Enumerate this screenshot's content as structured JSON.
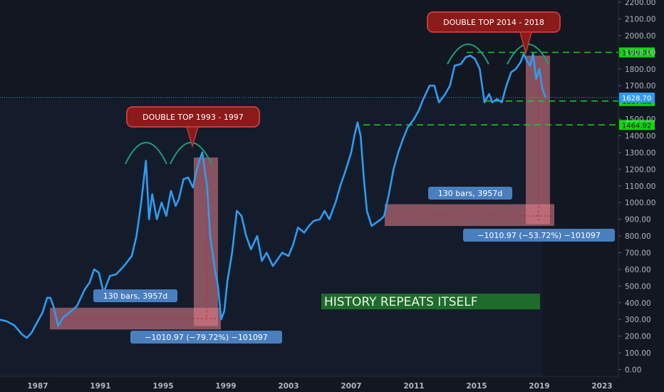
{
  "chart_data": {
    "type": "line",
    "series": [
      {
        "color": "#2f9cf1",
        "x": [
          1984.0,
          1984.5,
          1985.0,
          1985.5,
          1986.0,
          1986.3,
          1986.6,
          1987.0,
          1987.3,
          1987.6,
          1987.8,
          1988.0,
          1988.3,
          1988.6,
          1989.0,
          1989.5,
          1990.0,
          1990.3,
          1990.6,
          1990.9,
          1991.2,
          1991.6,
          1992.0,
          1992.5,
          1993.0,
          1993.3,
          1993.6,
          1993.9,
          1994.1,
          1994.3,
          1994.6,
          1994.9,
          1995.2,
          1995.5,
          1995.8,
          1996.0,
          1996.3,
          1996.6,
          1996.9,
          1997.1,
          1997.3,
          1997.5,
          1997.8,
          1998.0,
          1998.3,
          1998.5,
          1998.7,
          1998.9,
          1999.1,
          1999.4,
          1999.7,
          2000.0,
          2000.3,
          2000.6,
          2001.0,
          2001.3,
          2001.6,
          2002.0,
          2002.3,
          2002.6,
          2003.0,
          2003.3,
          2003.6,
          2004.0,
          2004.3,
          2004.6,
          2005.0,
          2005.3,
          2005.6,
          2006.0,
          2006.3,
          2006.6,
          2007.0,
          2007.2,
          2007.4,
          2007.6,
          2007.8,
          2008.0,
          2008.3,
          2008.6,
          2008.9,
          2009.1,
          2009.4,
          2009.7,
          2010.0,
          2010.3,
          2010.6,
          2011.0,
          2011.3,
          2011.6,
          2012.0,
          2012.3,
          2012.6,
          2013.0,
          2013.3,
          2013.6,
          2014.0,
          2014.3,
          2014.6,
          2014.9,
          2015.2,
          2015.5,
          2015.8,
          2016.0,
          2016.3,
          2016.6,
          2016.9,
          2017.2,
          2017.5,
          2017.8,
          2018.0,
          2018.2,
          2018.4,
          2018.6,
          2018.8,
          2019.0,
          2019.2,
          2019.4
        ],
        "y": [
          305,
          300,
          290,
          265,
          210,
          190,
          220,
          290,
          340,
          430,
          430,
          380,
          260,
          310,
          340,
          380,
          480,
          520,
          600,
          580,
          460,
          560,
          570,
          620,
          680,
          800,
          1000,
          1250,
          900,
          1050,
          900,
          1000,
          920,
          1070,
          980,
          1020,
          1140,
          1150,
          1090,
          1180,
          1250,
          1300,
          1100,
          800,
          600,
          500,
          300,
          350,
          530,
          700,
          950,
          920,
          800,
          720,
          800,
          650,
          700,
          620,
          660,
          700,
          680,
          750,
          850,
          820,
          860,
          890,
          900,
          950,
          900,
          1000,
          1100,
          1180,
          1300,
          1400,
          1480,
          1400,
          1150,
          950,
          860,
          880,
          900,
          920,
          1050,
          1200,
          1300,
          1380,
          1450,
          1500,
          1550,
          1620,
          1700,
          1700,
          1600,
          1650,
          1700,
          1820,
          1830,
          1870,
          1880,
          1860,
          1800,
          1600,
          1650,
          1600,
          1620,
          1600,
          1700,
          1780,
          1800,
          1840,
          1890,
          1850,
          1820,
          1890,
          1740,
          1800,
          1680,
          1628
        ]
      }
    ],
    "ylim": [
      -40,
      2220
    ],
    "xlim": [
      1984,
      2025
    ],
    "y_ticks": [
      "0.00",
      "100.00",
      "200.00",
      "300.00",
      "400.00",
      "500.00",
      "600.00",
      "700.00",
      "800.00",
      "900.00",
      "1000.00",
      "1100.00",
      "1200.00",
      "1300.00",
      "1400.00",
      "1500.00",
      "1700.00",
      "1800.00",
      "1900.00",
      "2000.00",
      "2100.00",
      "2200.00"
    ],
    "x_ticks": [
      "1987",
      "1991",
      "1995",
      "1999",
      "2003",
      "2007",
      "2011",
      "2015",
      "2019",
      "2023"
    ],
    "price_lines": [
      {
        "value": 1899.01,
        "label": "1899.01"
      },
      {
        "value": 1607.88,
        "label": "1607.88"
      },
      {
        "value": 1464.92,
        "label": "1464.92"
      }
    ],
    "current_price": {
      "value": 1628.7,
      "label": "1628.70"
    },
    "annotations": {
      "double_top_1": "DOUBLE TOP 1993 - 1997",
      "double_top_2": "DOUBLE TOP 2014 - 2018",
      "bars_label_1": "130 bars, 3957d",
      "bars_label_2": "130 bars, 3957d",
      "change_label_1": "−1010.97 (−79.72%) −101097",
      "change_label_2": "−1010.97 (−53.72%) −101097",
      "headline": "HISTORY REPEATS ITSELF"
    },
    "colors": {
      "background": "#131722",
      "line": "#2f9cf1",
      "dashed_green": "#13d413",
      "arc": "#1c9e7c",
      "bubble": "#8b1a1a",
      "measure_box": "rgba(230,130,140,0.55)",
      "label_blue": "#4a7fbf",
      "headline_bg": "#1e6b2a"
    }
  }
}
